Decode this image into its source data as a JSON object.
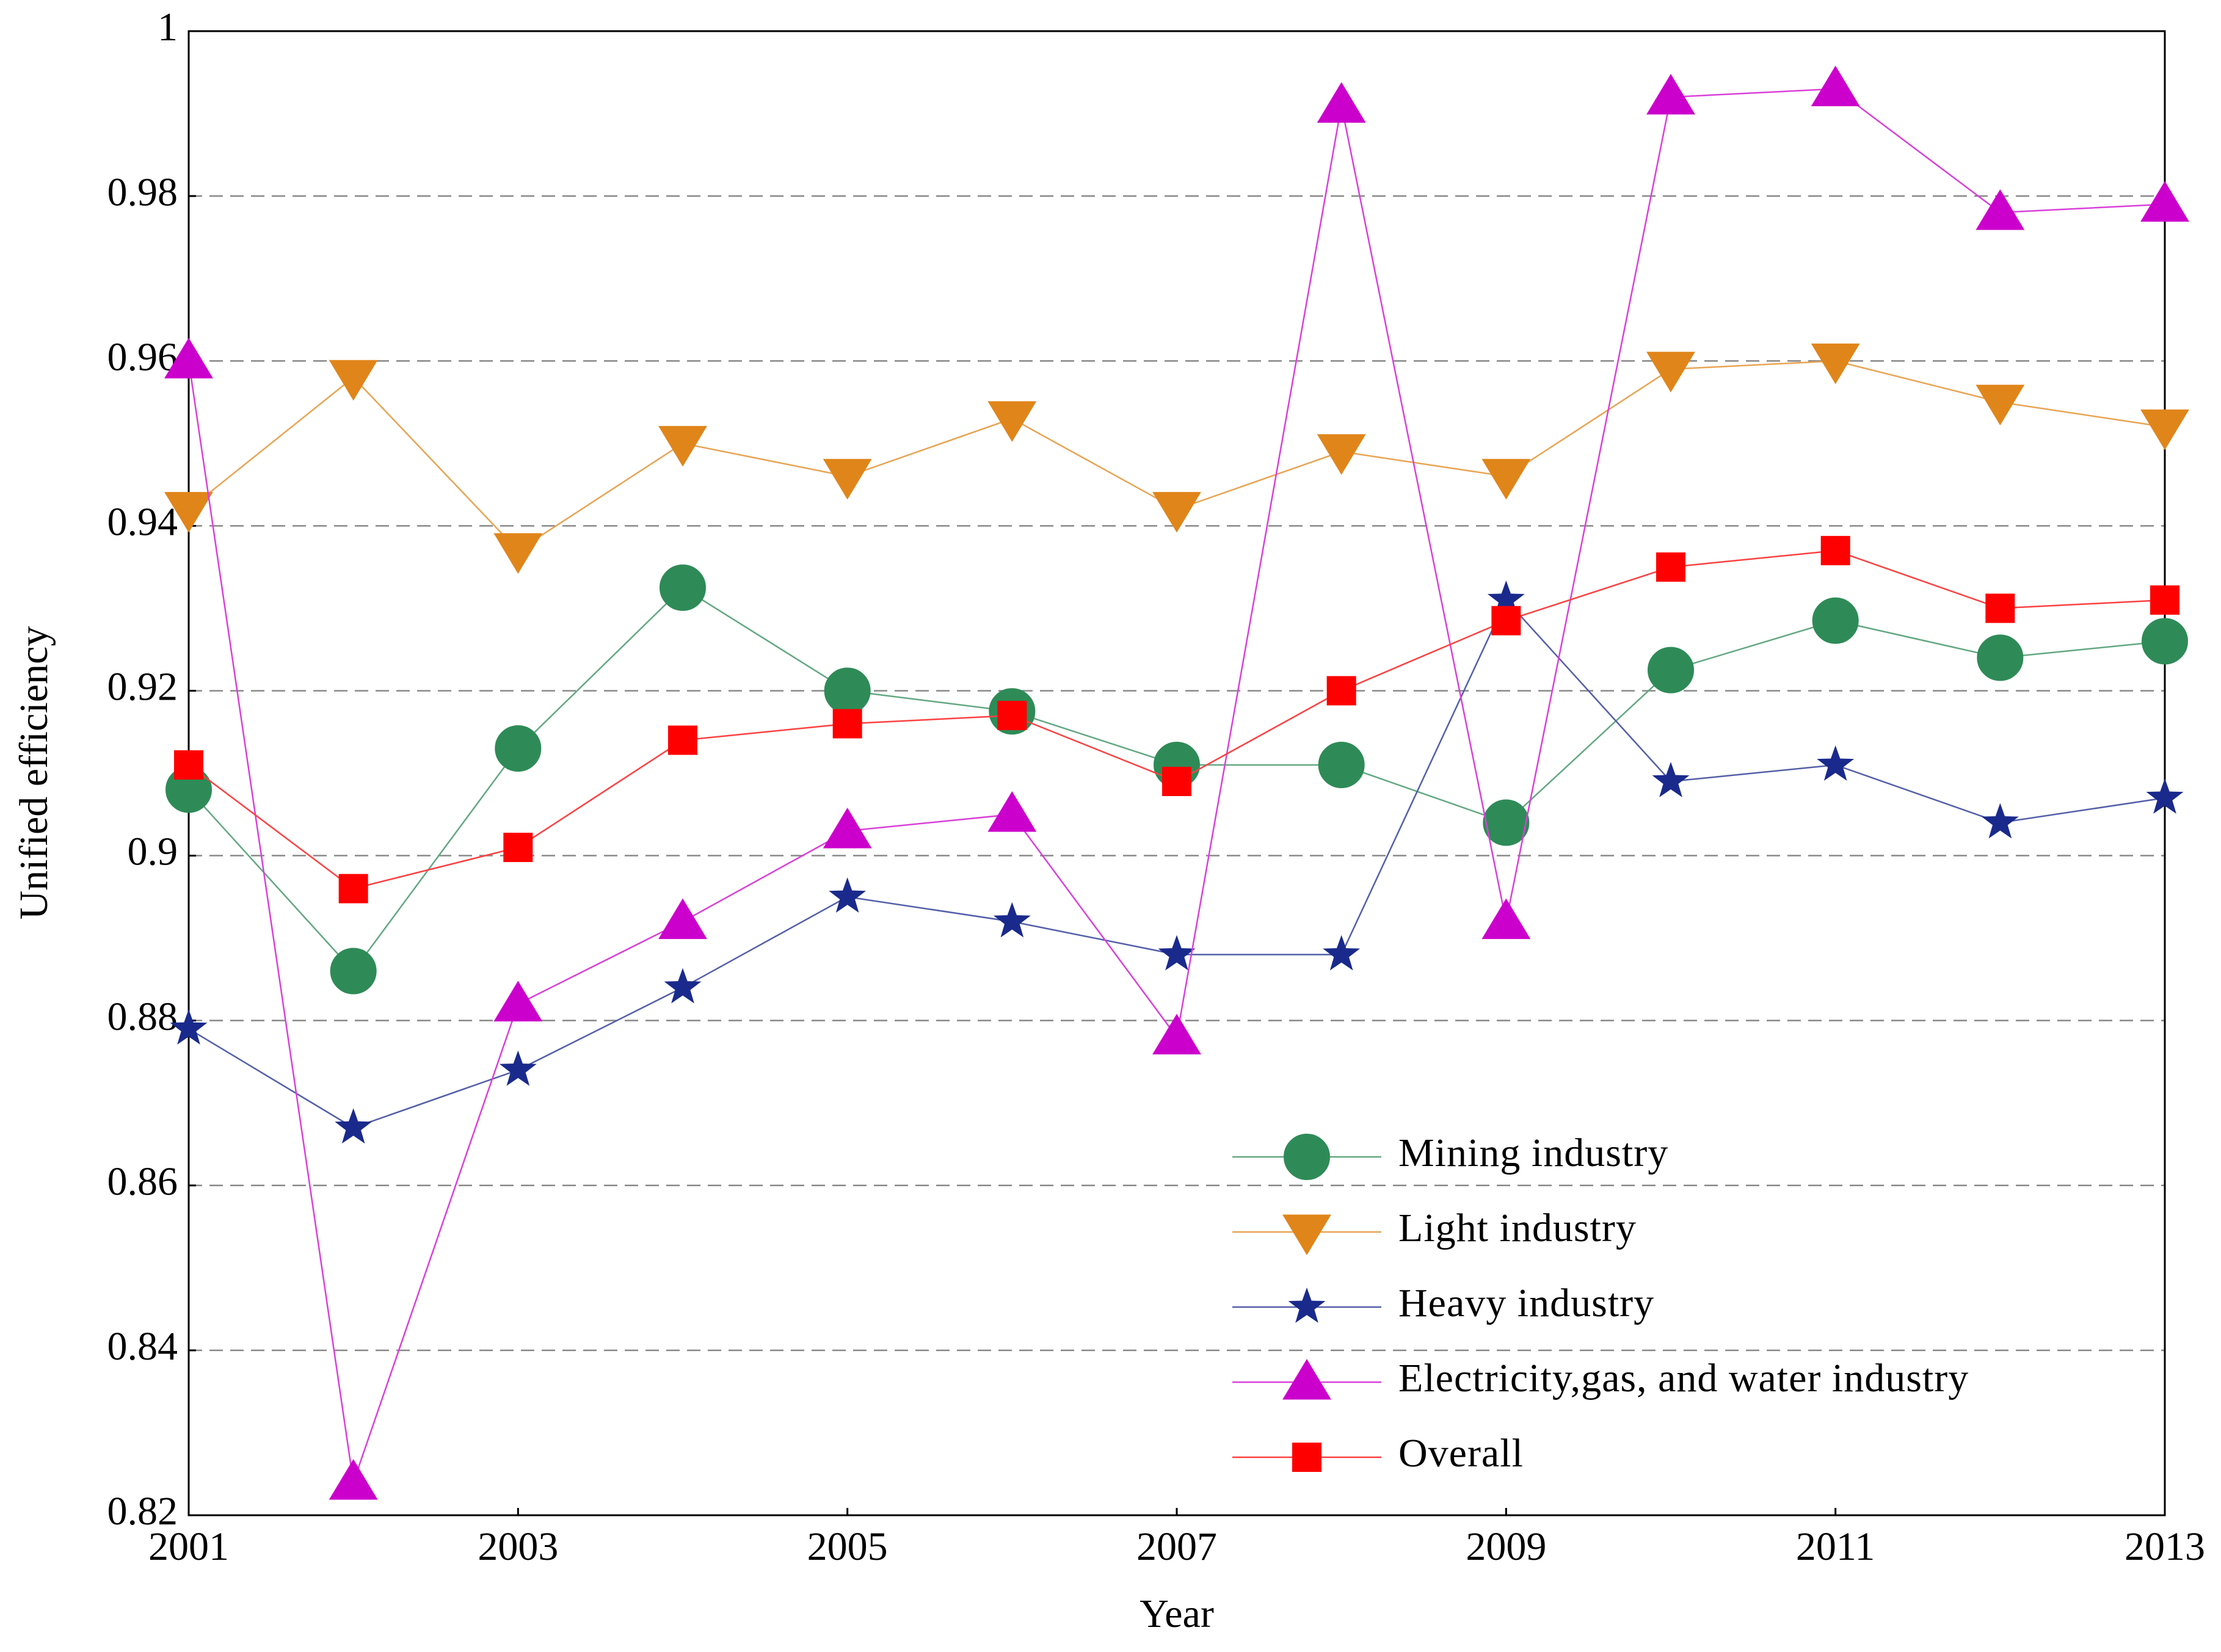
{
  "chart_data": {
    "type": "line",
    "x_label": "Year",
    "y_label": "Unified efficiency",
    "x": [
      2001,
      2002,
      2003,
      2004,
      2005,
      2006,
      2007,
      2008,
      2009,
      2010,
      2011,
      2012,
      2013
    ],
    "xlim": [
      2001,
      2013
    ],
    "xticks": [
      2001,
      2003,
      2005,
      2007,
      2009,
      2011,
      2013
    ],
    "ylim": [
      0.82,
      1
    ],
    "yticks": [
      0.82,
      0.84,
      0.86,
      0.88,
      0.9,
      0.92,
      0.94,
      0.96,
      0.98,
      1
    ],
    "grid": true,
    "legend": "lower right",
    "series": [
      {
        "name": "Mining industry",
        "color": "#2e8b57",
        "marker": "circle",
        "values": [
          0.908,
          0.886,
          0.913,
          0.9325,
          0.92,
          0.9175,
          0.911,
          0.911,
          0.904,
          0.9225,
          0.9285,
          0.924,
          0.926
        ]
      },
      {
        "name": "Light industry",
        "color": "#e0851a",
        "marker": "triangle-down",
        "values": [
          0.942,
          0.958,
          0.937,
          0.95,
          0.946,
          0.953,
          0.942,
          0.949,
          0.946,
          0.959,
          0.96,
          0.955,
          0.952
        ]
      },
      {
        "name": "Heavy industry",
        "color": "#1a2a8c",
        "marker": "star",
        "values": [
          0.879,
          0.867,
          0.874,
          0.884,
          0.895,
          0.892,
          0.888,
          0.888,
          0.931,
          0.909,
          0.911,
          0.904,
          0.907
        ]
      },
      {
        "name": "Electricity,gas, and water industry",
        "color": "#cc00cc",
        "marker": "triangle-up",
        "values": [
          0.96,
          0.824,
          0.882,
          0.892,
          0.903,
          0.905,
          0.878,
          0.991,
          0.892,
          0.992,
          0.993,
          0.978,
          0.979
        ]
      },
      {
        "name": "Overall",
        "color": "#ff0000",
        "marker": "square",
        "values": [
          0.911,
          0.896,
          0.901,
          0.914,
          0.916,
          0.917,
          0.909,
          0.92,
          0.9285,
          0.935,
          0.937,
          0.93,
          0.931
        ]
      }
    ]
  }
}
